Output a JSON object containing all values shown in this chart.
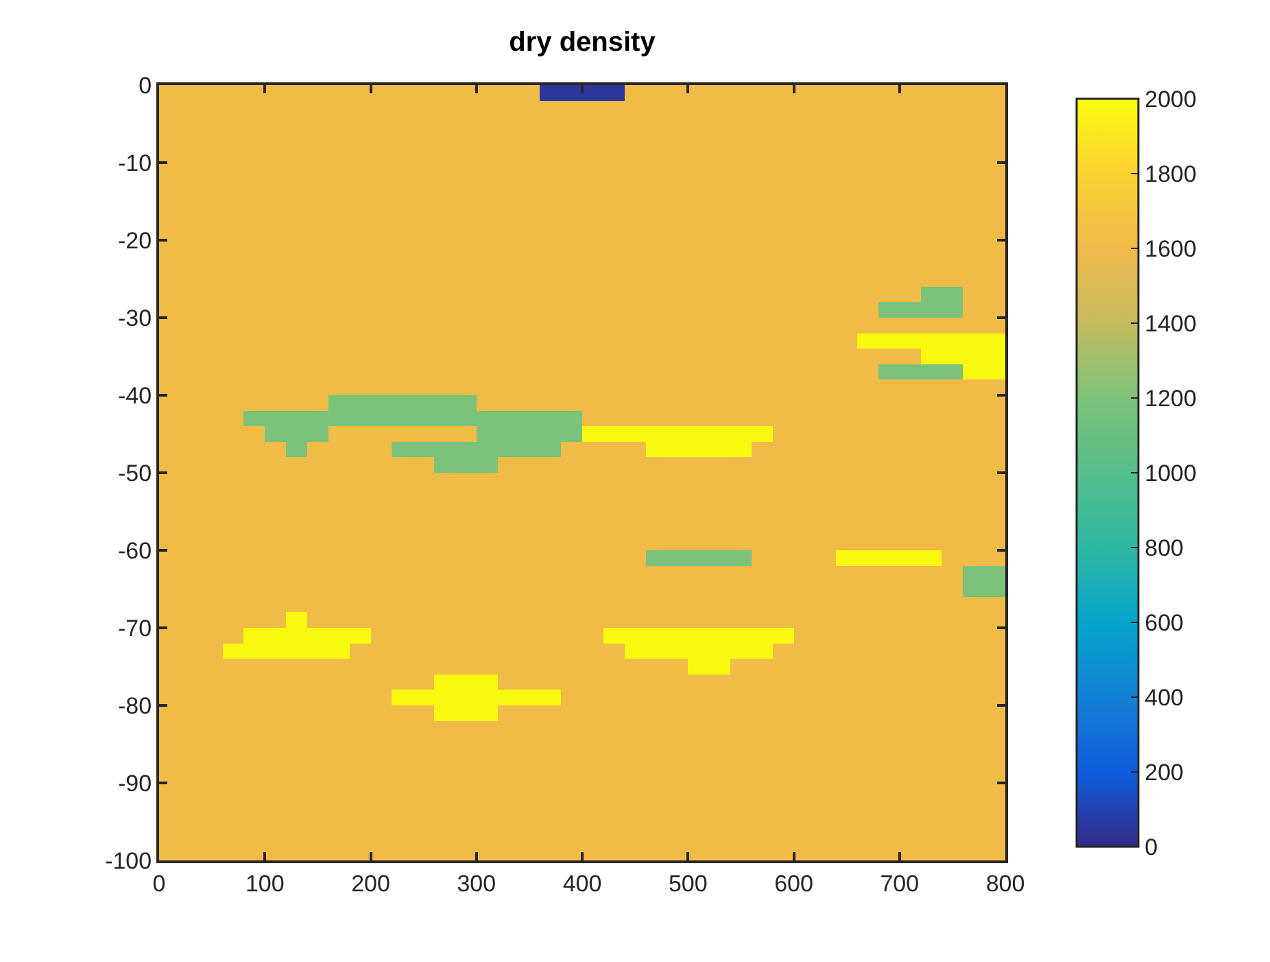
{
  "chart_data": {
    "type": "heatmap",
    "title": "dry density",
    "x": [
      10,
      30,
      50,
      70,
      90,
      110,
      130,
      150,
      170,
      190,
      210,
      230,
      250,
      270,
      290,
      310,
      330,
      350,
      370,
      390,
      410,
      430,
      450,
      470,
      490,
      510,
      530,
      550,
      570,
      590,
      610,
      630,
      650,
      670,
      690,
      710,
      730,
      750,
      770,
      790
    ],
    "y": [
      -1,
      -3,
      -5,
      -7,
      -9,
      -11,
      -13,
      -15,
      -17,
      -19,
      -21,
      -23,
      -25,
      -27,
      -29,
      -31,
      -33,
      -35,
      -37,
      -39,
      -41,
      -43,
      -45,
      -47,
      -49,
      -51,
      -53,
      -55,
      -57,
      -59,
      -61,
      -63,
      -65,
      -67,
      -69,
      -71,
      -73,
      -75,
      -77,
      -79,
      -81,
      -83,
      -85,
      -87,
      -89,
      -91,
      -93,
      -95,
      -97,
      -99
    ],
    "xlim": [
      0,
      800
    ],
    "xticks": [
      0,
      100,
      200,
      300,
      400,
      500,
      600,
      700,
      800
    ],
    "ylim": [
      -100,
      0
    ],
    "yticks": [
      -100,
      -90,
      -80,
      -70,
      -60,
      -50,
      -40,
      -30,
      -20,
      -10,
      0
    ],
    "clim": [
      0,
      2000
    ],
    "cticks": [
      0,
      200,
      400,
      600,
      800,
      1000,
      1200,
      1400,
      1600,
      1800,
      2000
    ],
    "cells": [
      [
        1620,
        1620,
        1620,
        1620,
        1620,
        1620,
        1620,
        1620,
        1620,
        1620,
        1620,
        1620,
        1620,
        1620,
        1620,
        1620,
        1620,
        1620,
        50,
        50,
        50,
        50,
        1620,
        1620,
        1620,
        1620,
        1620,
        1620,
        1620,
        1620,
        1620,
        1620,
        1620,
        1620,
        1620,
        1620,
        1620,
        1620,
        1620,
        1620
      ],
      [
        1620,
        1620,
        1620,
        1620,
        1620,
        1620,
        1620,
        1620,
        1620,
        1620,
        1620,
        1620,
        1620,
        1620,
        1620,
        1620,
        1620,
        1620,
        1620,
        1620,
        1620,
        1620,
        1620,
        1620,
        1620,
        1620,
        1620,
        1620,
        1620,
        1620,
        1620,
        1620,
        1620,
        1620,
        1620,
        1620,
        1620,
        1620,
        1620,
        1620
      ],
      [
        1620,
        1620,
        1620,
        1620,
        1620,
        1620,
        1620,
        1620,
        1620,
        1620,
        1620,
        1620,
        1620,
        1620,
        1620,
        1620,
        1620,
        1620,
        1620,
        1620,
        1620,
        1620,
        1620,
        1620,
        1620,
        1620,
        1620,
        1620,
        1620,
        1620,
        1620,
        1620,
        1620,
        1620,
        1620,
        1620,
        1620,
        1620,
        1620,
        1620
      ],
      [
        1620,
        1620,
        1620,
        1620,
        1620,
        1620,
        1620,
        1620,
        1620,
        1620,
        1620,
        1620,
        1620,
        1620,
        1620,
        1620,
        1620,
        1620,
        1620,
        1620,
        1620,
        1620,
        1620,
        1620,
        1620,
        1620,
        1620,
        1620,
        1620,
        1620,
        1620,
        1620,
        1620,
        1620,
        1620,
        1620,
        1620,
        1620,
        1620,
        1620
      ],
      [
        1620,
        1620,
        1620,
        1620,
        1620,
        1620,
        1620,
        1620,
        1620,
        1620,
        1620,
        1620,
        1620,
        1620,
        1620,
        1620,
        1620,
        1620,
        1620,
        1620,
        1620,
        1620,
        1620,
        1620,
        1620,
        1620,
        1620,
        1620,
        1620,
        1620,
        1620,
        1620,
        1620,
        1620,
        1620,
        1620,
        1620,
        1620,
        1620,
        1620
      ],
      [
        1620,
        1620,
        1620,
        1620,
        1620,
        1620,
        1620,
        1620,
        1620,
        1620,
        1620,
        1620,
        1620,
        1620,
        1620,
        1620,
        1620,
        1620,
        1620,
        1620,
        1620,
        1620,
        1620,
        1620,
        1620,
        1620,
        1620,
        1620,
        1620,
        1620,
        1620,
        1620,
        1620,
        1620,
        1620,
        1620,
        1620,
        1620,
        1620,
        1620
      ],
      [
        1620,
        1620,
        1620,
        1620,
        1620,
        1620,
        1620,
        1620,
        1620,
        1620,
        1620,
        1620,
        1620,
        1620,
        1620,
        1620,
        1620,
        1620,
        1620,
        1620,
        1620,
        1620,
        1620,
        1620,
        1620,
        1620,
        1620,
        1620,
        1620,
        1620,
        1620,
        1620,
        1620,
        1620,
        1620,
        1620,
        1620,
        1620,
        1620,
        1620
      ],
      [
        1620,
        1620,
        1620,
        1620,
        1620,
        1620,
        1620,
        1620,
        1620,
        1620,
        1620,
        1620,
        1620,
        1620,
        1620,
        1620,
        1620,
        1620,
        1620,
        1620,
        1620,
        1620,
        1620,
        1620,
        1620,
        1620,
        1620,
        1620,
        1620,
        1620,
        1620,
        1620,
        1620,
        1620,
        1620,
        1620,
        1620,
        1620,
        1620,
        1620
      ],
      [
        1620,
        1620,
        1620,
        1620,
        1620,
        1620,
        1620,
        1620,
        1620,
        1620,
        1620,
        1620,
        1620,
        1620,
        1620,
        1620,
        1620,
        1620,
        1620,
        1620,
        1620,
        1620,
        1620,
        1620,
        1620,
        1620,
        1620,
        1620,
        1620,
        1620,
        1620,
        1620,
        1620,
        1620,
        1620,
        1620,
        1620,
        1620,
        1620,
        1620
      ],
      [
        1620,
        1620,
        1620,
        1620,
        1620,
        1620,
        1620,
        1620,
        1620,
        1620,
        1620,
        1620,
        1620,
        1620,
        1620,
        1620,
        1620,
        1620,
        1620,
        1620,
        1620,
        1620,
        1620,
        1620,
        1620,
        1620,
        1620,
        1620,
        1620,
        1620,
        1620,
        1620,
        1620,
        1620,
        1620,
        1620,
        1620,
        1620,
        1620,
        1620
      ],
      [
        1620,
        1620,
        1620,
        1620,
        1620,
        1620,
        1620,
        1620,
        1620,
        1620,
        1620,
        1620,
        1620,
        1620,
        1620,
        1620,
        1620,
        1620,
        1620,
        1620,
        1620,
        1620,
        1620,
        1620,
        1620,
        1620,
        1620,
        1620,
        1620,
        1620,
        1620,
        1620,
        1620,
        1620,
        1620,
        1620,
        1620,
        1620,
        1620,
        1620
      ],
      [
        1620,
        1620,
        1620,
        1620,
        1620,
        1620,
        1620,
        1620,
        1620,
        1620,
        1620,
        1620,
        1620,
        1620,
        1620,
        1620,
        1620,
        1620,
        1620,
        1620,
        1620,
        1620,
        1620,
        1620,
        1620,
        1620,
        1620,
        1620,
        1620,
        1620,
        1620,
        1620,
        1620,
        1620,
        1620,
        1620,
        1620,
        1620,
        1620,
        1620
      ],
      [
        1620,
        1620,
        1620,
        1620,
        1620,
        1620,
        1620,
        1620,
        1620,
        1620,
        1620,
        1620,
        1620,
        1620,
        1620,
        1620,
        1620,
        1620,
        1620,
        1620,
        1620,
        1620,
        1620,
        1620,
        1620,
        1620,
        1620,
        1620,
        1620,
        1620,
        1620,
        1620,
        1620,
        1620,
        1620,
        1620,
        1620,
        1620,
        1620,
        1620
      ],
      [
        1620,
        1620,
        1620,
        1620,
        1620,
        1620,
        1620,
        1620,
        1620,
        1620,
        1620,
        1620,
        1620,
        1620,
        1620,
        1620,
        1620,
        1620,
        1620,
        1620,
        1620,
        1620,
        1620,
        1620,
        1620,
        1620,
        1620,
        1620,
        1620,
        1620,
        1620,
        1620,
        1620,
        1620,
        1620,
        1620,
        1200,
        1200,
        1620,
        1620
      ],
      [
        1620,
        1620,
        1620,
        1620,
        1620,
        1620,
        1620,
        1620,
        1620,
        1620,
        1620,
        1620,
        1620,
        1620,
        1620,
        1620,
        1620,
        1620,
        1620,
        1620,
        1620,
        1620,
        1620,
        1620,
        1620,
        1620,
        1620,
        1620,
        1620,
        1620,
        1620,
        1620,
        1620,
        1620,
        1200,
        1200,
        1200,
        1200,
        1620,
        1620
      ],
      [
        1620,
        1620,
        1620,
        1620,
        1620,
        1620,
        1620,
        1620,
        1620,
        1620,
        1620,
        1620,
        1620,
        1620,
        1620,
        1620,
        1620,
        1620,
        1620,
        1620,
        1620,
        1620,
        1620,
        1620,
        1620,
        1620,
        1620,
        1620,
        1620,
        1620,
        1620,
        1620,
        1620,
        1620,
        1620,
        1620,
        1620,
        1620,
        1620,
        1620
      ],
      [
        1620,
        1620,
        1620,
        1620,
        1620,
        1620,
        1620,
        1620,
        1620,
        1620,
        1620,
        1620,
        1620,
        1620,
        1620,
        1620,
        1620,
        1620,
        1620,
        1620,
        1620,
        1620,
        1620,
        1620,
        1620,
        1620,
        1620,
        1620,
        1620,
        1620,
        1620,
        1620,
        1620,
        1990,
        1990,
        1990,
        1990,
        1990,
        1990,
        1990
      ],
      [
        1620,
        1620,
        1620,
        1620,
        1620,
        1620,
        1620,
        1620,
        1620,
        1620,
        1620,
        1620,
        1620,
        1620,
        1620,
        1620,
        1620,
        1620,
        1620,
        1620,
        1620,
        1620,
        1620,
        1620,
        1620,
        1620,
        1620,
        1620,
        1620,
        1620,
        1620,
        1620,
        1620,
        1620,
        1620,
        1620,
        1990,
        1990,
        1990,
        1990
      ],
      [
        1620,
        1620,
        1620,
        1620,
        1620,
        1620,
        1620,
        1620,
        1620,
        1620,
        1620,
        1620,
        1620,
        1620,
        1620,
        1620,
        1620,
        1620,
        1620,
        1620,
        1620,
        1620,
        1620,
        1620,
        1620,
        1620,
        1620,
        1620,
        1620,
        1620,
        1620,
        1620,
        1620,
        1620,
        1200,
        1200,
        1200,
        1200,
        1990,
        1990
      ],
      [
        1620,
        1620,
        1620,
        1620,
        1620,
        1620,
        1620,
        1620,
        1620,
        1620,
        1620,
        1620,
        1620,
        1620,
        1620,
        1620,
        1620,
        1620,
        1620,
        1620,
        1620,
        1620,
        1620,
        1620,
        1620,
        1620,
        1620,
        1620,
        1620,
        1620,
        1620,
        1620,
        1620,
        1620,
        1620,
        1620,
        1620,
        1620,
        1620,
        1620
      ],
      [
        1620,
        1620,
        1620,
        1620,
        1620,
        1620,
        1620,
        1620,
        1200,
        1200,
        1200,
        1200,
        1200,
        1200,
        1200,
        1620,
        1620,
        1620,
        1620,
        1620,
        1620,
        1620,
        1620,
        1620,
        1620,
        1620,
        1620,
        1620,
        1620,
        1620,
        1620,
        1620,
        1620,
        1620,
        1620,
        1620,
        1620,
        1620,
        1620,
        1620
      ],
      [
        1620,
        1620,
        1620,
        1620,
        1200,
        1200,
        1200,
        1200,
        1200,
        1200,
        1200,
        1200,
        1200,
        1200,
        1200,
        1200,
        1200,
        1200,
        1200,
        1200,
        1620,
        1620,
        1620,
        1620,
        1620,
        1620,
        1620,
        1620,
        1620,
        1620,
        1620,
        1620,
        1620,
        1620,
        1620,
        1620,
        1620,
        1620,
        1620,
        1620
      ],
      [
        1620,
        1620,
        1620,
        1620,
        1620,
        1200,
        1200,
        1200,
        1620,
        1620,
        1620,
        1620,
        1620,
        1620,
        1620,
        1200,
        1200,
        1200,
        1200,
        1200,
        1990,
        1990,
        1990,
        1990,
        1990,
        1990,
        1990,
        1990,
        1990,
        1620,
        1620,
        1620,
        1620,
        1620,
        1620,
        1620,
        1620,
        1620,
        1620,
        1620
      ],
      [
        1620,
        1620,
        1620,
        1620,
        1620,
        1620,
        1200,
        1620,
        1620,
        1620,
        1620,
        1200,
        1200,
        1200,
        1200,
        1200,
        1200,
        1200,
        1200,
        1620,
        1620,
        1620,
        1620,
        1990,
        1990,
        1990,
        1990,
        1990,
        1620,
        1620,
        1620,
        1620,
        1620,
        1620,
        1620,
        1620,
        1620,
        1620,
        1620,
        1620
      ],
      [
        1620,
        1620,
        1620,
        1620,
        1620,
        1620,
        1620,
        1620,
        1620,
        1620,
        1620,
        1620,
        1620,
        1200,
        1200,
        1200,
        1620,
        1620,
        1620,
        1620,
        1620,
        1620,
        1620,
        1620,
        1620,
        1620,
        1620,
        1620,
        1620,
        1620,
        1620,
        1620,
        1620,
        1620,
        1620,
        1620,
        1620,
        1620,
        1620,
        1620
      ],
      [
        1620,
        1620,
        1620,
        1620,
        1620,
        1620,
        1620,
        1620,
        1620,
        1620,
        1620,
        1620,
        1620,
        1620,
        1620,
        1620,
        1620,
        1620,
        1620,
        1620,
        1620,
        1620,
        1620,
        1620,
        1620,
        1620,
        1620,
        1620,
        1620,
        1620,
        1620,
        1620,
        1620,
        1620,
        1620,
        1620,
        1620,
        1620,
        1620,
        1620
      ],
      [
        1620,
        1620,
        1620,
        1620,
        1620,
        1620,
        1620,
        1620,
        1620,
        1620,
        1620,
        1620,
        1620,
        1620,
        1620,
        1620,
        1620,
        1620,
        1620,
        1620,
        1620,
        1620,
        1620,
        1620,
        1620,
        1620,
        1620,
        1620,
        1620,
        1620,
        1620,
        1620,
        1620,
        1620,
        1620,
        1620,
        1620,
        1620,
        1620,
        1620
      ],
      [
        1620,
        1620,
        1620,
        1620,
        1620,
        1620,
        1620,
        1620,
        1620,
        1620,
        1620,
        1620,
        1620,
        1620,
        1620,
        1620,
        1620,
        1620,
        1620,
        1620,
        1620,
        1620,
        1620,
        1620,
        1620,
        1620,
        1620,
        1620,
        1620,
        1620,
        1620,
        1620,
        1620,
        1620,
        1620,
        1620,
        1620,
        1620,
        1620,
        1620
      ],
      [
        1620,
        1620,
        1620,
        1620,
        1620,
        1620,
        1620,
        1620,
        1620,
        1620,
        1620,
        1620,
        1620,
        1620,
        1620,
        1620,
        1620,
        1620,
        1620,
        1620,
        1620,
        1620,
        1620,
        1620,
        1620,
        1620,
        1620,
        1620,
        1620,
        1620,
        1620,
        1620,
        1620,
        1620,
        1620,
        1620,
        1620,
        1620,
        1620,
        1620
      ],
      [
        1620,
        1620,
        1620,
        1620,
        1620,
        1620,
        1620,
        1620,
        1620,
        1620,
        1620,
        1620,
        1620,
        1620,
        1620,
        1620,
        1620,
        1620,
        1620,
        1620,
        1620,
        1620,
        1620,
        1620,
        1620,
        1620,
        1620,
        1620,
        1620,
        1620,
        1620,
        1620,
        1620,
        1620,
        1620,
        1620,
        1620,
        1620,
        1620,
        1620
      ],
      [
        1620,
        1620,
        1620,
        1620,
        1620,
        1620,
        1620,
        1620,
        1620,
        1620,
        1620,
        1620,
        1620,
        1620,
        1620,
        1620,
        1620,
        1620,
        1620,
        1620,
        1620,
        1620,
        1620,
        1200,
        1200,
        1200,
        1200,
        1200,
        1620,
        1620,
        1620,
        1620,
        1990,
        1990,
        1990,
        1990,
        1990,
        1620,
        1620,
        1620
      ],
      [
        1620,
        1620,
        1620,
        1620,
        1620,
        1620,
        1620,
        1620,
        1620,
        1620,
        1620,
        1620,
        1620,
        1620,
        1620,
        1620,
        1620,
        1620,
        1620,
        1620,
        1620,
        1620,
        1620,
        1620,
        1620,
        1620,
        1620,
        1620,
        1620,
        1620,
        1620,
        1620,
        1620,
        1620,
        1620,
        1620,
        1620,
        1620,
        1200,
        1200
      ],
      [
        1620,
        1620,
        1620,
        1620,
        1620,
        1620,
        1620,
        1620,
        1620,
        1620,
        1620,
        1620,
        1620,
        1620,
        1620,
        1620,
        1620,
        1620,
        1620,
        1620,
        1620,
        1620,
        1620,
        1620,
        1620,
        1620,
        1620,
        1620,
        1620,
        1620,
        1620,
        1620,
        1620,
        1620,
        1620,
        1620,
        1620,
        1620,
        1200,
        1200
      ],
      [
        1620,
        1620,
        1620,
        1620,
        1620,
        1620,
        1620,
        1620,
        1620,
        1620,
        1620,
        1620,
        1620,
        1620,
        1620,
        1620,
        1620,
        1620,
        1620,
        1620,
        1620,
        1620,
        1620,
        1620,
        1620,
        1620,
        1620,
        1620,
        1620,
        1620,
        1620,
        1620,
        1620,
        1620,
        1620,
        1620,
        1620,
        1620,
        1620,
        1620
      ],
      [
        1620,
        1620,
        1620,
        1620,
        1620,
        1620,
        1990,
        1620,
        1620,
        1620,
        1620,
        1620,
        1620,
        1620,
        1620,
        1620,
        1620,
        1620,
        1620,
        1620,
        1620,
        1620,
        1620,
        1620,
        1620,
        1620,
        1620,
        1620,
        1620,
        1620,
        1620,
        1620,
        1620,
        1620,
        1620,
        1620,
        1620,
        1620,
        1620,
        1620
      ],
      [
        1620,
        1620,
        1620,
        1620,
        1990,
        1990,
        1990,
        1990,
        1990,
        1990,
        1620,
        1620,
        1620,
        1620,
        1620,
        1620,
        1620,
        1620,
        1620,
        1620,
        1620,
        1990,
        1990,
        1990,
        1990,
        1990,
        1990,
        1990,
        1990,
        1990,
        1620,
        1620,
        1620,
        1620,
        1620,
        1620,
        1620,
        1620,
        1620,
        1620
      ],
      [
        1620,
        1620,
        1620,
        1990,
        1990,
        1990,
        1990,
        1990,
        1990,
        1620,
        1620,
        1620,
        1620,
        1620,
        1620,
        1620,
        1620,
        1620,
        1620,
        1620,
        1620,
        1620,
        1990,
        1990,
        1990,
        1990,
        1990,
        1990,
        1990,
        1620,
        1620,
        1620,
        1620,
        1620,
        1620,
        1620,
        1620,
        1620,
        1620,
        1620
      ],
      [
        1620,
        1620,
        1620,
        1620,
        1620,
        1620,
        1620,
        1620,
        1620,
        1620,
        1620,
        1620,
        1620,
        1620,
        1620,
        1620,
        1620,
        1620,
        1620,
        1620,
        1620,
        1620,
        1620,
        1620,
        1620,
        1990,
        1990,
        1620,
        1620,
        1620,
        1620,
        1620,
        1620,
        1620,
        1620,
        1620,
        1620,
        1620,
        1620,
        1620
      ],
      [
        1620,
        1620,
        1620,
        1620,
        1620,
        1620,
        1620,
        1620,
        1620,
        1620,
        1620,
        1620,
        1620,
        1990,
        1990,
        1990,
        1620,
        1620,
        1620,
        1620,
        1620,
        1620,
        1620,
        1620,
        1620,
        1620,
        1620,
        1620,
        1620,
        1620,
        1620,
        1620,
        1620,
        1620,
        1620,
        1620,
        1620,
        1620,
        1620,
        1620
      ],
      [
        1620,
        1620,
        1620,
        1620,
        1620,
        1620,
        1620,
        1620,
        1620,
        1620,
        1620,
        1990,
        1990,
        1990,
        1990,
        1990,
        1990,
        1990,
        1990,
        1620,
        1620,
        1620,
        1620,
        1620,
        1620,
        1620,
        1620,
        1620,
        1620,
        1620,
        1620,
        1620,
        1620,
        1620,
        1620,
        1620,
        1620,
        1620,
        1620,
        1620
      ],
      [
        1620,
        1620,
        1620,
        1620,
        1620,
        1620,
        1620,
        1620,
        1620,
        1620,
        1620,
        1620,
        1620,
        1990,
        1990,
        1990,
        1620,
        1620,
        1620,
        1620,
        1620,
        1620,
        1620,
        1620,
        1620,
        1620,
        1620,
        1620,
        1620,
        1620,
        1620,
        1620,
        1620,
        1620,
        1620,
        1620,
        1620,
        1620,
        1620,
        1620
      ],
      [
        1620,
        1620,
        1620,
        1620,
        1620,
        1620,
        1620,
        1620,
        1620,
        1620,
        1620,
        1620,
        1620,
        1620,
        1620,
        1620,
        1620,
        1620,
        1620,
        1620,
        1620,
        1620,
        1620,
        1620,
        1620,
        1620,
        1620,
        1620,
        1620,
        1620,
        1620,
        1620,
        1620,
        1620,
        1620,
        1620,
        1620,
        1620,
        1620,
        1620
      ],
      [
        1620,
        1620,
        1620,
        1620,
        1620,
        1620,
        1620,
        1620,
        1620,
        1620,
        1620,
        1620,
        1620,
        1620,
        1620,
        1620,
        1620,
        1620,
        1620,
        1620,
        1620,
        1620,
        1620,
        1620,
        1620,
        1620,
        1620,
        1620,
        1620,
        1620,
        1620,
        1620,
        1620,
        1620,
        1620,
        1620,
        1620,
        1620,
        1620,
        1620
      ],
      [
        1620,
        1620,
        1620,
        1620,
        1620,
        1620,
        1620,
        1620,
        1620,
        1620,
        1620,
        1620,
        1620,
        1620,
        1620,
        1620,
        1620,
        1620,
        1620,
        1620,
        1620,
        1620,
        1620,
        1620,
        1620,
        1620,
        1620,
        1620,
        1620,
        1620,
        1620,
        1620,
        1620,
        1620,
        1620,
        1620,
        1620,
        1620,
        1620,
        1620
      ],
      [
        1620,
        1620,
        1620,
        1620,
        1620,
        1620,
        1620,
        1620,
        1620,
        1620,
        1620,
        1620,
        1620,
        1620,
        1620,
        1620,
        1620,
        1620,
        1620,
        1620,
        1620,
        1620,
        1620,
        1620,
        1620,
        1620,
        1620,
        1620,
        1620,
        1620,
        1620,
        1620,
        1620,
        1620,
        1620,
        1620,
        1620,
        1620,
        1620,
        1620
      ],
      [
        1620,
        1620,
        1620,
        1620,
        1620,
        1620,
        1620,
        1620,
        1620,
        1620,
        1620,
        1620,
        1620,
        1620,
        1620,
        1620,
        1620,
        1620,
        1620,
        1620,
        1620,
        1620,
        1620,
        1620,
        1620,
        1620,
        1620,
        1620,
        1620,
        1620,
        1620,
        1620,
        1620,
        1620,
        1620,
        1620,
        1620,
        1620,
        1620,
        1620
      ],
      [
        1620,
        1620,
        1620,
        1620,
        1620,
        1620,
        1620,
        1620,
        1620,
        1620,
        1620,
        1620,
        1620,
        1620,
        1620,
        1620,
        1620,
        1620,
        1620,
        1620,
        1620,
        1620,
        1620,
        1620,
        1620,
        1620,
        1620,
        1620,
        1620,
        1620,
        1620,
        1620,
        1620,
        1620,
        1620,
        1620,
        1620,
        1620,
        1620,
        1620
      ],
      [
        1620,
        1620,
        1620,
        1620,
        1620,
        1620,
        1620,
        1620,
        1620,
        1620,
        1620,
        1620,
        1620,
        1620,
        1620,
        1620,
        1620,
        1620,
        1620,
        1620,
        1620,
        1620,
        1620,
        1620,
        1620,
        1620,
        1620,
        1620,
        1620,
        1620,
        1620,
        1620,
        1620,
        1620,
        1620,
        1620,
        1620,
        1620,
        1620,
        1620
      ],
      [
        1620,
        1620,
        1620,
        1620,
        1620,
        1620,
        1620,
        1620,
        1620,
        1620,
        1620,
        1620,
        1620,
        1620,
        1620,
        1620,
        1620,
        1620,
        1620,
        1620,
        1620,
        1620,
        1620,
        1620,
        1620,
        1620,
        1620,
        1620,
        1620,
        1620,
        1620,
        1620,
        1620,
        1620,
        1620,
        1620,
        1620,
        1620,
        1620,
        1620
      ],
      [
        1620,
        1620,
        1620,
        1620,
        1620,
        1620,
        1620,
        1620,
        1620,
        1620,
        1620,
        1620,
        1620,
        1620,
        1620,
        1620,
        1620,
        1620,
        1620,
        1620,
        1620,
        1620,
        1620,
        1620,
        1620,
        1620,
        1620,
        1620,
        1620,
        1620,
        1620,
        1620,
        1620,
        1620,
        1620,
        1620,
        1620,
        1620,
        1620,
        1620
      ]
    ]
  }
}
